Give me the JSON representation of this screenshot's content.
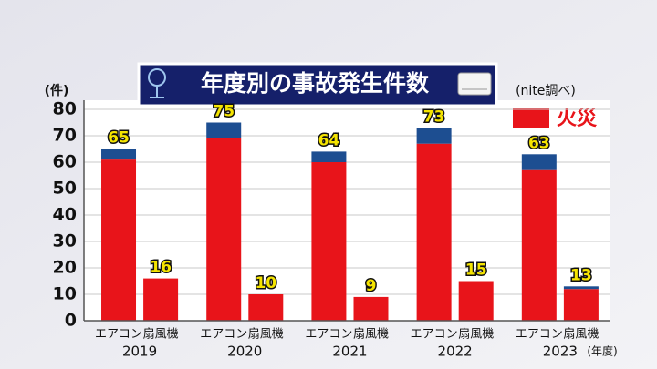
{
  "chart_data": {
    "type": "stacked_bar",
    "title": "年度別の事故発生件数",
    "y_unit": "(件)",
    "source": "(nite調べ)",
    "group_unit": "(年度)",
    "groups": [
      "2019",
      "2020",
      "2021",
      "2022",
      "2023"
    ],
    "categories": [
      "エアコン",
      "扇風機",
      "エアコン",
      "扇風機",
      "エアコン",
      "扇風機",
      "エアコン",
      "扇風機",
      "エアコン",
      "扇風機"
    ],
    "series": [
      {
        "name": "火災",
        "color": "#e8141a",
        "values": [
          61,
          16,
          69,
          10,
          60,
          9,
          67,
          15,
          57,
          12
        ]
      },
      {
        "color": "#1d4e91",
        "values": [
          4,
          0,
          6,
          0,
          4,
          0,
          6,
          0,
          6,
          1
        ]
      }
    ],
    "totals": [
      65,
      16,
      75,
      10,
      64,
      9,
      73,
      15,
      63,
      13
    ],
    "ylim": [
      0,
      80
    ],
    "yticks": [
      0,
      10,
      20,
      30,
      40,
      50,
      60,
      70,
      80
    ],
    "grid": true
  }
}
